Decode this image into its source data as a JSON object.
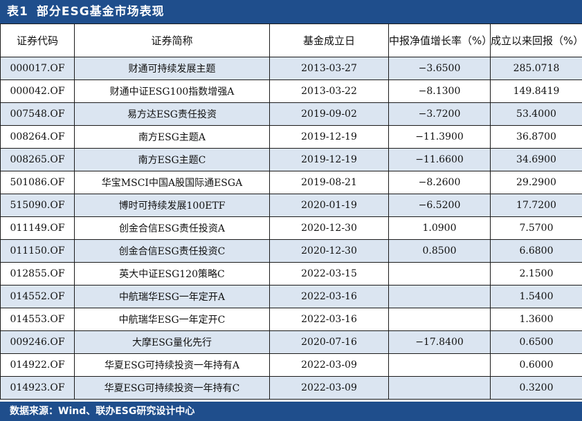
{
  "title": {
    "number": "表1",
    "text": "部分ESG基金市场表现"
  },
  "headers": [
    "证券代码",
    "证券简称",
    "基金成立日",
    "中报净值增长率（%）",
    "成立以来回报（%）"
  ],
  "rows": [
    {
      "code": "000017.OF",
      "name": "财通可持续发展主题",
      "date": "2013-03-27",
      "growth": "−3.6500",
      "return": "285.0718"
    },
    {
      "code": "000042.OF",
      "name": "财通中证ESG100指数增强A",
      "date": "2013-03-22",
      "growth": "−8.1300",
      "return": "149.8419"
    },
    {
      "code": "007548.OF",
      "name": "易方达ESG责任投资",
      "date": "2019-09-02",
      "growth": "−3.7200",
      "return": "53.4000"
    },
    {
      "code": "008264.OF",
      "name": "南方ESG主题A",
      "date": "2019-12-19",
      "growth": "−11.3900",
      "return": "36.8700"
    },
    {
      "code": "008265.OF",
      "name": "南方ESG主题C",
      "date": "2019-12-19",
      "growth": "−11.6600",
      "return": "34.6900"
    },
    {
      "code": "501086.OF",
      "name": "华宝MSCI中国A股国际通ESGA",
      "date": "2019-08-21",
      "growth": "−8.2600",
      "return": "29.2900"
    },
    {
      "code": "515090.OF",
      "name": "博时可持续发展100ETF",
      "date": "2020-01-19",
      "growth": "−6.5200",
      "return": "17.7200"
    },
    {
      "code": "011149.OF",
      "name": "创金合信ESG责任投资A",
      "date": "2020-12-30",
      "growth": "1.0900",
      "return": "7.5700"
    },
    {
      "code": "011150.OF",
      "name": "创金合信ESG责任投资C",
      "date": "2020-12-30",
      "growth": "0.8500",
      "return": "6.6800"
    },
    {
      "code": "012855.OF",
      "name": "英大中证ESG120策略C",
      "date": "2022-03-15",
      "growth": "",
      "return": "2.1500"
    },
    {
      "code": "014552.OF",
      "name": "中航瑞华ESG一年定开A",
      "date": "2022-03-16",
      "growth": "",
      "return": "1.5400"
    },
    {
      "code": "014553.OF",
      "name": "中航瑞华ESG一年定开C",
      "date": "2022-03-16",
      "growth": "",
      "return": "1.3600"
    },
    {
      "code": "009246.OF",
      "name": "大摩ESG量化先行",
      "date": "2020-07-16",
      "growth": "−17.8400",
      "return": "0.6500"
    },
    {
      "code": "014922.OF",
      "name": "华夏ESG可持续投资一年持有A",
      "date": "2022-03-09",
      "growth": "",
      "return": "0.6000"
    },
    {
      "code": "014923.OF",
      "name": "华夏ESG可持续投资一年持有C",
      "date": "2022-03-09",
      "growth": "",
      "return": "0.3200"
    }
  ],
  "footer": "数据来源：Wind、联办ESG研究设计中心"
}
